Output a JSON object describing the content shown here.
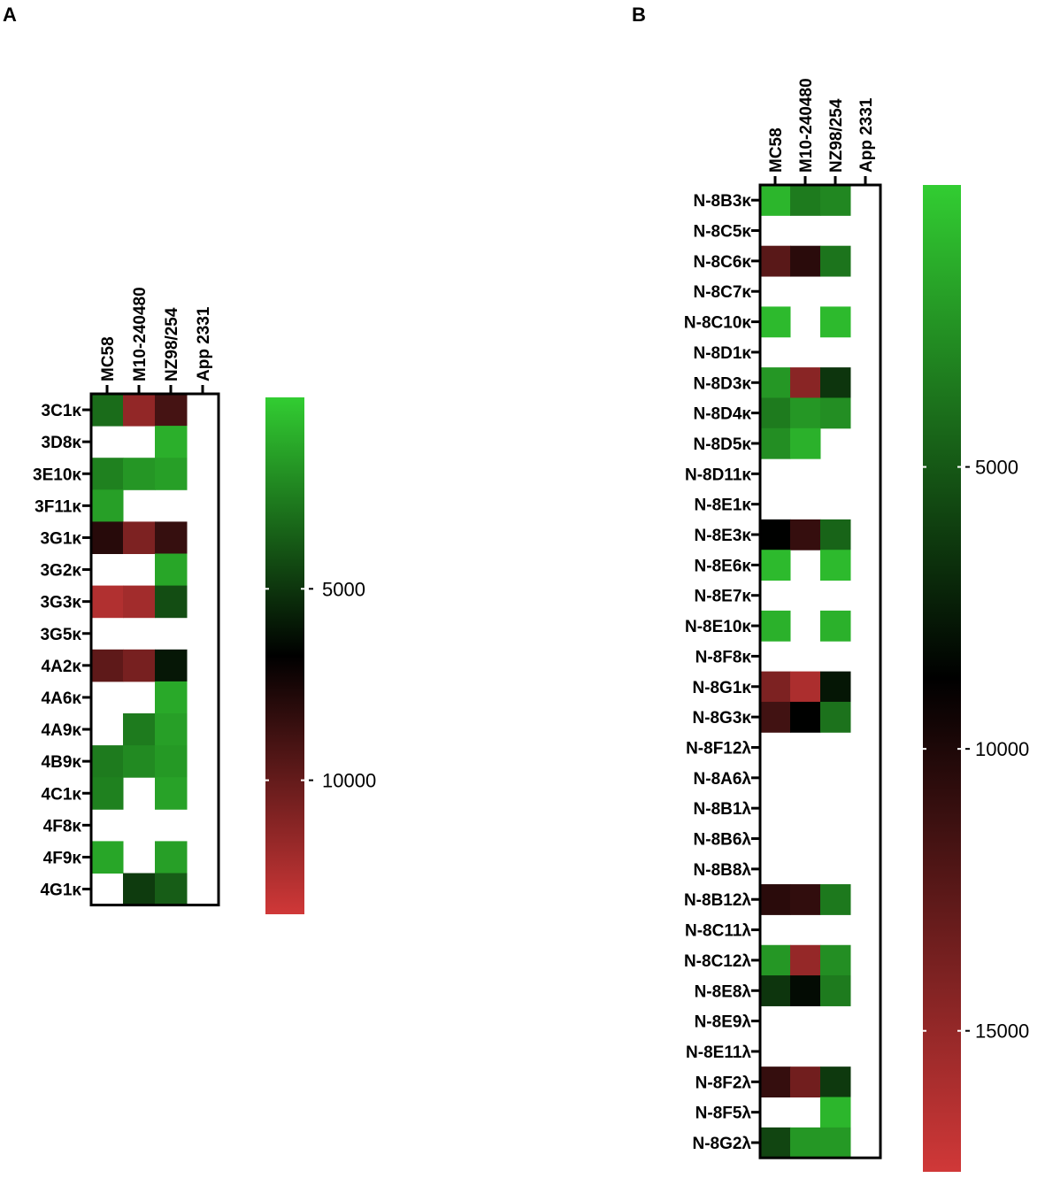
{
  "colors": {
    "low": "#32cd32",
    "mid": "#000000",
    "high": "#d03838",
    "empty": "#ffffff"
  },
  "chart_data": [
    {
      "type": "heatmap",
      "panel": "A",
      "columns": [
        "MC58",
        "M10-240480",
        "NZ98/254",
        "App 2331"
      ],
      "rows": [
        "3C1κ",
        "3D8κ",
        "3E10κ",
        "3F11κ",
        "3G1κ",
        "3G2κ",
        "3G3κ",
        "3G5κ",
        "4A2κ",
        "4A6κ",
        "4A9κ",
        "4B9κ",
        "4C1κ",
        "4F8κ",
        "4F9κ",
        "4G1κ"
      ],
      "values": [
        [
          3200,
          11500,
          9000,
          null
        ],
        [
          null,
          null,
          1000,
          null
        ],
        [
          2500,
          1800,
          1500,
          null
        ],
        [
          1500,
          null,
          null,
          null
        ],
        [
          8000,
          10800,
          8500,
          null
        ],
        [
          null,
          null,
          1300,
          null
        ],
        [
          12500,
          12000,
          4200,
          null
        ],
        [
          null,
          null,
          null,
          null
        ],
        [
          9800,
          10600,
          6000,
          null
        ],
        [
          null,
          null,
          1200,
          null
        ],
        [
          null,
          2700,
          1500,
          null
        ],
        [
          2700,
          2200,
          1700,
          null
        ],
        [
          2500,
          null,
          1400,
          null
        ],
        [
          null,
          null,
          null,
          null
        ],
        [
          1300,
          null,
          1500,
          null
        ],
        [
          null,
          4800,
          3700,
          null
        ]
      ],
      "colorbar": {
        "ticks": [
          5000,
          10000
        ],
        "min": 0,
        "max": 13500
      }
    },
    {
      "type": "heatmap",
      "panel": "B",
      "columns": [
        "MC58",
        "M10-240480",
        "NZ98/254",
        "App 2331"
      ],
      "rows": [
        "N-8B3κ",
        "N-8C5κ",
        "N-8C6κ",
        "N-8C7κ",
        "N-8C10κ",
        "N-8D1κ",
        "N-8D3κ",
        "N-8D4κ",
        "N-8D5κ",
        "N-8D11κ",
        "N-8E1κ",
        "N-8E3κ",
        "N-8E6κ",
        "N-8E7κ",
        "N-8E10κ",
        "N-8F8κ",
        "N-8G1κ",
        "N-8G3κ",
        "N-8F12λ",
        "N-8A6λ",
        "N-8B1λ",
        "N-8B6λ",
        "N-8B8λ",
        "N-8B12λ",
        "N-8C11λ",
        "N-8C12λ",
        "N-8E8λ",
        "N-8E9λ",
        "N-8E11λ",
        "N-8F2λ",
        "N-8F5λ",
        "N-8G2λ"
      ],
      "values": [
        [
          1000,
          3500,
          3000,
          null
        ],
        [
          null,
          null,
          null,
          null
        ],
        [
          12500,
          10500,
          3800,
          null
        ],
        [
          null,
          null,
          null,
          null
        ],
        [
          800,
          null,
          800,
          null
        ],
        [
          null,
          null,
          null,
          null
        ],
        [
          2300,
          14500,
          6500,
          null
        ],
        [
          3500,
          2300,
          2700,
          null
        ],
        [
          2700,
          1200,
          null,
          null
        ],
        [
          null,
          null,
          null,
          null
        ],
        [
          null,
          null,
          null,
          null
        ],
        [
          8700,
          11000,
          4500,
          null
        ],
        [
          800,
          null,
          800,
          null
        ],
        [
          null,
          null,
          null,
          null
        ],
        [
          1200,
          null,
          1200,
          null
        ],
        [
          null,
          null,
          null,
          null
        ],
        [
          14000,
          16000,
          7800,
          null
        ],
        [
          11500,
          8700,
          3900,
          null
        ],
        [
          null,
          null,
          null,
          null
        ],
        [
          null,
          null,
          null,
          null
        ],
        [
          null,
          null,
          null,
          null
        ],
        [
          null,
          null,
          null,
          null
        ],
        [
          null,
          null,
          null,
          null
        ],
        [
          10500,
          10800,
          3600,
          null
        ],
        [
          null,
          null,
          null,
          null
        ],
        [
          2300,
          15000,
          2700,
          null
        ],
        [
          6500,
          8300,
          3500,
          null
        ],
        [
          null,
          null,
          null,
          null
        ],
        [
          null,
          null,
          null,
          null
        ],
        [
          11000,
          13500,
          6300,
          null
        ],
        [
          null,
          null,
          1000,
          null
        ],
        [
          5800,
          2300,
          2200,
          null
        ]
      ],
      "colorbar": {
        "ticks": [
          5000,
          10000,
          15000
        ],
        "min": 0,
        "max": 17500
      }
    }
  ]
}
